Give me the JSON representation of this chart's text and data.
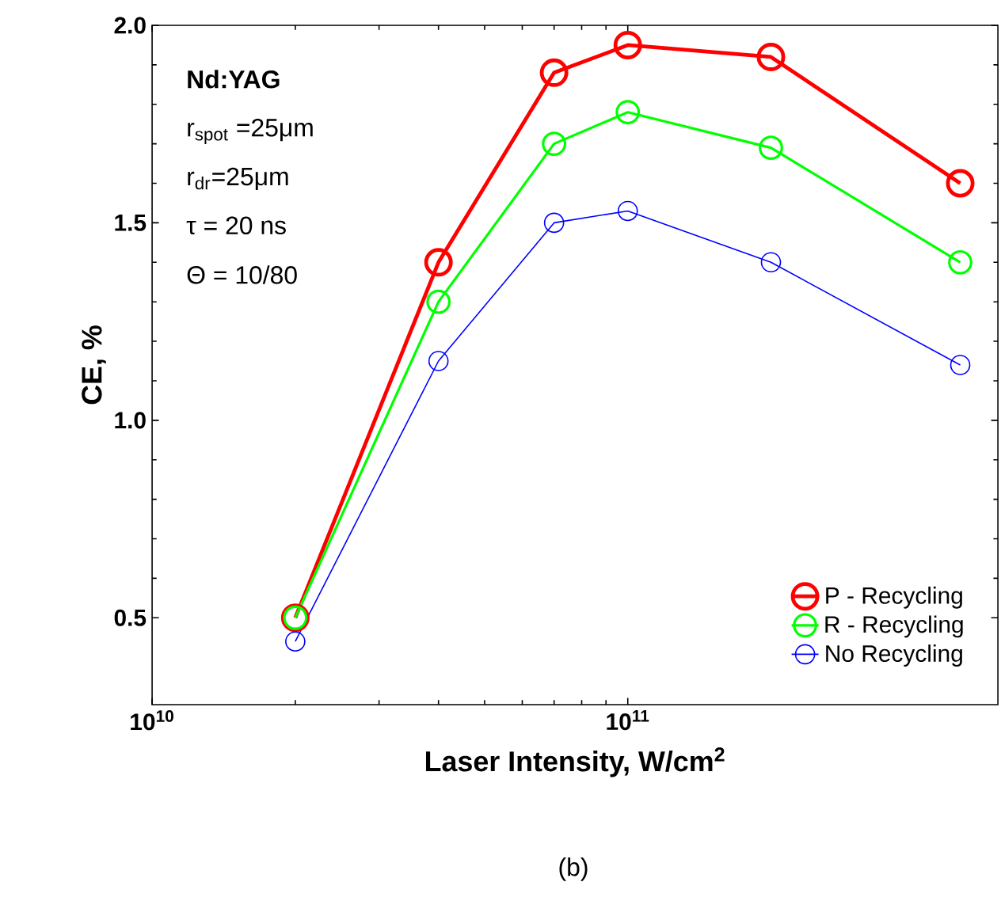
{
  "chart_data": {
    "type": "line",
    "xlabel": "Laser Intensity, W/cm$^{2}$",
    "ylabel": "CE, %",
    "annotations": [
      "**Nd:YAG**",
      "r$_{spot}$ =25μm",
      "r$_{dr}$=25μm",
      "τ = 20 ns",
      "Θ = 10/80",
      "(b)"
    ],
    "x": [
      20000000000.0,
      40000000000.0,
      70000000000.0,
      100000000000.0,
      200000000000.0,
      500000000000.0
    ],
    "series": [
      {
        "name": "P - Recycling",
        "color": "#ff0000",
        "values": [
          0.5,
          1.4,
          1.88,
          1.95,
          1.92,
          1.6
        ]
      },
      {
        "name": "R - Recycling",
        "color": "#00ff00",
        "values": [
          0.5,
          1.3,
          1.7,
          1.78,
          1.69,
          1.4
        ]
      },
      {
        "name": "No Recycling",
        "color": "#0000ff",
        "values": [
          0.44,
          1.15,
          1.5,
          1.53,
          1.4,
          1.14
        ]
      }
    ],
    "log": "x",
    "xlim": [
      10000000000.0,
      600000000000.0
    ],
    "ylim": [
      0.28,
      2.0
    ],
    "xticks": [
      {
        "value": 10000000000.0,
        "label": "10$^{10}$"
      },
      {
        "value": 100000000000.0,
        "label": "10$^{11}$"
      }
    ],
    "yticks": [
      0.5,
      {
        "value": 1.0,
        "label": "1.0"
      },
      1.5,
      {
        "value": 2.0,
        "label": "2.0"
      }
    ],
    "marker": "circle",
    "line_style": "solid",
    "legend": "bottom right",
    "grid": false
  }
}
